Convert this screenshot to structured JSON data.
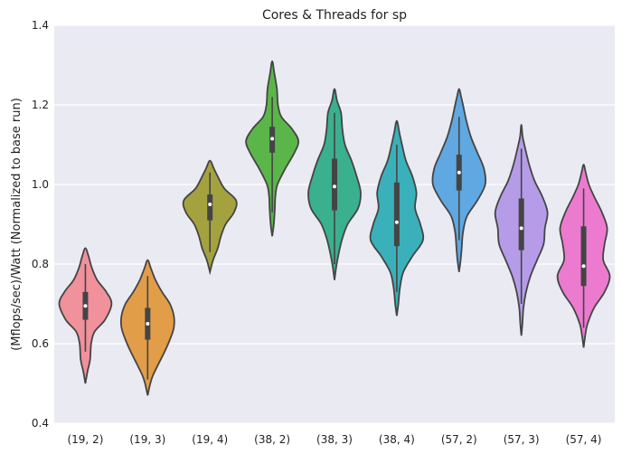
{
  "chart_data": {
    "type": "violin",
    "title": "Cores & Threads for sp",
    "xlabel": "",
    "ylabel": "(Mflops/sec)/Watt (Normalized to base run)",
    "ylim": [
      0.4,
      1.4
    ],
    "yticks": [
      "0.4",
      "0.6",
      "0.8",
      "1.0",
      "1.2",
      "1.4"
    ],
    "grid": true,
    "legend": "none",
    "categories": [
      "(19, 2)",
      "(19, 3)",
      "(19, 4)",
      "(38, 2)",
      "(38, 3)",
      "(38, 4)",
      "(57, 2)",
      "(57, 3)",
      "(57, 4)"
    ],
    "colors": [
      "#f0919b",
      "#e29d48",
      "#a3a23f",
      "#5bb64a",
      "#3ab08e",
      "#3ab0ba",
      "#5fa8e2",
      "#b69ce8",
      "#ec7bd0"
    ],
    "series": [
      {
        "min": 0.5,
        "max": 0.84,
        "whisker_low": 0.58,
        "q1": 0.66,
        "median": 0.695,
        "q3": 0.73,
        "whisker_high": 0.8,
        "density": [
          [
            0.5,
            0.0
          ],
          [
            0.53,
            0.08
          ],
          [
            0.56,
            0.18
          ],
          [
            0.6,
            0.22
          ],
          [
            0.63,
            0.35
          ],
          [
            0.66,
            0.75
          ],
          [
            0.7,
            1.0
          ],
          [
            0.73,
            0.8
          ],
          [
            0.76,
            0.45
          ],
          [
            0.79,
            0.25
          ],
          [
            0.82,
            0.12
          ],
          [
            0.84,
            0.0
          ]
        ]
      },
      {
        "min": 0.47,
        "max": 0.81,
        "whisker_low": 0.51,
        "q1": 0.61,
        "median": 0.65,
        "q3": 0.69,
        "whisker_high": 0.77,
        "density": [
          [
            0.47,
            0.0
          ],
          [
            0.5,
            0.1
          ],
          [
            0.52,
            0.2
          ],
          [
            0.55,
            0.42
          ],
          [
            0.58,
            0.65
          ],
          [
            0.61,
            0.85
          ],
          [
            0.64,
            1.0
          ],
          [
            0.67,
            1.0
          ],
          [
            0.7,
            0.85
          ],
          [
            0.73,
            0.55
          ],
          [
            0.76,
            0.3
          ],
          [
            0.79,
            0.12
          ],
          [
            0.81,
            0.0
          ]
        ]
      },
      {
        "min": 0.78,
        "max": 1.06,
        "whisker_low": 0.83,
        "q1": 0.91,
        "median": 0.95,
        "q3": 0.975,
        "whisker_high": 1.03,
        "density": [
          [
            0.78,
            0.0
          ],
          [
            0.81,
            0.12
          ],
          [
            0.84,
            0.3
          ],
          [
            0.87,
            0.42
          ],
          [
            0.9,
            0.6
          ],
          [
            0.93,
            0.92
          ],
          [
            0.96,
            1.0
          ],
          [
            0.99,
            0.55
          ],
          [
            1.02,
            0.3
          ],
          [
            1.04,
            0.15
          ],
          [
            1.06,
            0.0
          ]
        ]
      },
      {
        "min": 0.87,
        "max": 1.31,
        "whisker_low": 0.93,
        "q1": 1.08,
        "median": 1.115,
        "q3": 1.145,
        "whisker_high": 1.22,
        "density": [
          [
            0.87,
            0.0
          ],
          [
            0.9,
            0.06
          ],
          [
            0.94,
            0.1
          ],
          [
            0.97,
            0.12
          ],
          [
            1.0,
            0.2
          ],
          [
            1.04,
            0.5
          ],
          [
            1.08,
            0.85
          ],
          [
            1.11,
            1.0
          ],
          [
            1.14,
            0.75
          ],
          [
            1.17,
            0.35
          ],
          [
            1.2,
            0.22
          ],
          [
            1.24,
            0.18
          ],
          [
            1.28,
            0.08
          ],
          [
            1.31,
            0.0
          ]
        ]
      },
      {
        "min": 0.76,
        "max": 1.24,
        "whisker_low": 0.8,
        "q1": 0.935,
        "median": 0.995,
        "q3": 1.065,
        "whisker_high": 1.18,
        "density": [
          [
            0.76,
            0.0
          ],
          [
            0.79,
            0.06
          ],
          [
            0.82,
            0.14
          ],
          [
            0.86,
            0.28
          ],
          [
            0.9,
            0.5
          ],
          [
            0.94,
            0.9
          ],
          [
            0.98,
            1.0
          ],
          [
            1.02,
            0.85
          ],
          [
            1.06,
            0.65
          ],
          [
            1.1,
            0.4
          ],
          [
            1.14,
            0.3
          ],
          [
            1.18,
            0.25
          ],
          [
            1.21,
            0.1
          ],
          [
            1.24,
            0.0
          ]
        ]
      },
      {
        "min": 0.67,
        "max": 1.16,
        "whisker_low": 0.73,
        "q1": 0.845,
        "median": 0.905,
        "q3": 1.005,
        "whisker_high": 1.1,
        "density": [
          [
            0.67,
            0.0
          ],
          [
            0.7,
            0.06
          ],
          [
            0.74,
            0.12
          ],
          [
            0.78,
            0.25
          ],
          [
            0.82,
            0.6
          ],
          [
            0.86,
            1.0
          ],
          [
            0.9,
            0.9
          ],
          [
            0.94,
            0.7
          ],
          [
            0.98,
            0.75
          ],
          [
            1.02,
            0.6
          ],
          [
            1.06,
            0.35
          ],
          [
            1.1,
            0.2
          ],
          [
            1.13,
            0.1
          ],
          [
            1.16,
            0.0
          ]
        ]
      },
      {
        "min": 0.78,
        "max": 1.24,
        "whisker_low": 0.86,
        "q1": 0.985,
        "median": 1.03,
        "q3": 1.075,
        "whisker_high": 1.17,
        "density": [
          [
            0.78,
            0.0
          ],
          [
            0.81,
            0.06
          ],
          [
            0.84,
            0.1
          ],
          [
            0.88,
            0.15
          ],
          [
            0.92,
            0.3
          ],
          [
            0.96,
            0.7
          ],
          [
            1.0,
            1.0
          ],
          [
            1.04,
            0.95
          ],
          [
            1.08,
            0.7
          ],
          [
            1.12,
            0.45
          ],
          [
            1.16,
            0.28
          ],
          [
            1.2,
            0.15
          ],
          [
            1.22,
            0.08
          ],
          [
            1.24,
            0.0
          ]
        ]
      },
      {
        "min": 0.62,
        "max": 1.15,
        "whisker_low": 0.7,
        "q1": 0.835,
        "median": 0.89,
        "q3": 0.965,
        "whisker_high": 1.09,
        "density": [
          [
            0.62,
            0.0
          ],
          [
            0.65,
            0.04
          ],
          [
            0.69,
            0.08
          ],
          [
            0.73,
            0.18
          ],
          [
            0.77,
            0.35
          ],
          [
            0.81,
            0.6
          ],
          [
            0.85,
            0.85
          ],
          [
            0.89,
            0.9
          ],
          [
            0.93,
            1.0
          ],
          [
            0.97,
            0.8
          ],
          [
            1.01,
            0.5
          ],
          [
            1.05,
            0.3
          ],
          [
            1.09,
            0.15
          ],
          [
            1.12,
            0.05
          ],
          [
            1.15,
            0.0
          ]
        ]
      },
      {
        "min": 0.59,
        "max": 1.05,
        "whisker_low": 0.64,
        "q1": 0.745,
        "median": 0.795,
        "q3": 0.895,
        "whisker_high": 0.99,
        "density": [
          [
            0.59,
            0.0
          ],
          [
            0.62,
            0.06
          ],
          [
            0.65,
            0.15
          ],
          [
            0.69,
            0.4
          ],
          [
            0.73,
            0.8
          ],
          [
            0.77,
            1.0
          ],
          [
            0.81,
            0.75
          ],
          [
            0.85,
            0.8
          ],
          [
            0.89,
            0.9
          ],
          [
            0.93,
            0.7
          ],
          [
            0.97,
            0.4
          ],
          [
            1.0,
            0.2
          ],
          [
            1.03,
            0.08
          ],
          [
            1.05,
            0.0
          ]
        ]
      }
    ]
  }
}
